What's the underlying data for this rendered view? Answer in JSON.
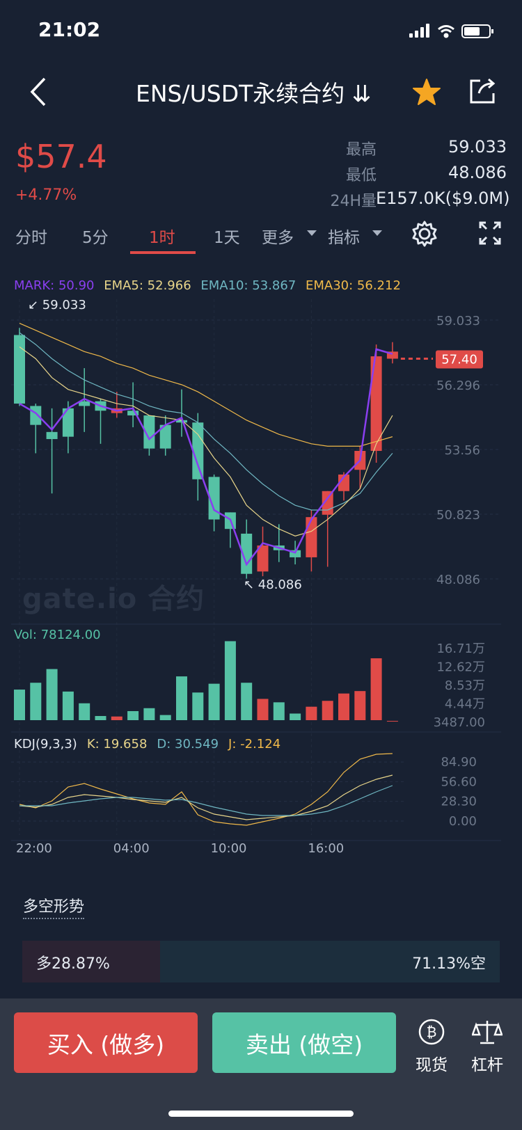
{
  "status": {
    "time": "21:02"
  },
  "header": {
    "title": "ENS/USDT永续合约 ⇊"
  },
  "ticker": {
    "price": "$57.4",
    "change": "+4.77%",
    "high_label": "最高",
    "high_value": "59.033",
    "low_label": "最低",
    "low_value": "48.086",
    "vol_label": "24H量",
    "vol_value": "E157.0K($9.0M)"
  },
  "tabs": [
    "分时",
    "5分",
    "1时",
    "1天",
    "更多",
    "指标"
  ],
  "active_tab": "1时",
  "legend": {
    "mark": "MARK: 50.90",
    "ema5": "EMA5: 52.966",
    "ema10": "EMA10: 53.867",
    "ema30": "EMA30: 56.212"
  },
  "colors": {
    "up": "#56c2a5",
    "down": "#e04b48",
    "mark": "#8a3ff0",
    "ema5": "#e8d58a",
    "ema10": "#6fb7c2",
    "ema30": "#f0b94a",
    "star": "#f5a623"
  },
  "chart_data": [
    {
      "type": "candlestick",
      "title": "",
      "y_ticks": [
        "59.033",
        "56.296",
        "53.56",
        "50.823",
        "48.086"
      ],
      "ylim": [
        48.086,
        59.033
      ],
      "x_ticks": [
        "22:00",
        "04:00",
        "10:00",
        "16:00"
      ],
      "max_label": "59.033",
      "min_label": "48.086",
      "last_price_label": "57.40",
      "candles": [
        {
          "o": 55.5,
          "h": 58.7,
          "l": 55.4,
          "c": 58.4
        },
        {
          "o": 54.6,
          "h": 55.5,
          "l": 53.4,
          "c": 55.4
        },
        {
          "o": 54.0,
          "h": 55.3,
          "l": 51.7,
          "c": 54.3
        },
        {
          "o": 54.1,
          "h": 55.6,
          "l": 53.4,
          "c": 55.3
        },
        {
          "o": 55.4,
          "h": 57.0,
          "l": 54.3,
          "c": 55.6
        },
        {
          "o": 55.2,
          "h": 55.7,
          "l": 53.8,
          "c": 55.6
        },
        {
          "o": 55.3,
          "h": 56.0,
          "l": 54.9,
          "c": 55.1
        },
        {
          "o": 55.0,
          "h": 56.4,
          "l": 54.5,
          "c": 55.2
        },
        {
          "o": 53.6,
          "h": 55.0,
          "l": 53.3,
          "c": 55.0
        },
        {
          "o": 53.6,
          "h": 55.0,
          "l": 53.3,
          "c": 54.6
        },
        {
          "o": 54.7,
          "h": 56.1,
          "l": 54.1,
          "c": 54.8
        },
        {
          "o": 52.3,
          "h": 55.1,
          "l": 51.4,
          "c": 54.7
        },
        {
          "o": 50.6,
          "h": 52.5,
          "l": 50.1,
          "c": 52.4
        },
        {
          "o": 50.2,
          "h": 50.9,
          "l": 49.4,
          "c": 50.9
        },
        {
          "o": 48.3,
          "h": 50.6,
          "l": 48.1,
          "c": 50.0
        },
        {
          "o": 49.5,
          "h": 50.3,
          "l": 48.2,
          "c": 48.4
        },
        {
          "o": 49.3,
          "h": 50.4,
          "l": 48.8,
          "c": 49.5
        },
        {
          "o": 49.0,
          "h": 49.7,
          "l": 48.7,
          "c": 49.3
        },
        {
          "o": 50.7,
          "h": 51.0,
          "l": 48.4,
          "c": 49.0
        },
        {
          "o": 51.8,
          "h": 51.8,
          "l": 48.6,
          "c": 50.8
        },
        {
          "o": 52.5,
          "h": 52.6,
          "l": 51.4,
          "c": 51.8
        },
        {
          "o": 53.5,
          "h": 53.7,
          "l": 51.9,
          "c": 52.7
        },
        {
          "o": 57.5,
          "h": 58.0,
          "l": 53.0,
          "c": 53.5
        },
        {
          "o": 57.7,
          "h": 58.1,
          "l": 57.2,
          "c": 57.4
        }
      ],
      "mark_line": [
        55.5,
        55.1,
        54.4,
        55.3,
        55.7,
        55.4,
        55.2,
        55.3,
        54.0,
        54.6,
        54.9,
        52.9,
        51.0,
        50.6,
        48.7,
        49.6,
        49.4,
        49.2,
        50.6,
        51.5,
        52.4,
        53.1,
        57.8,
        57.6
      ],
      "ema5": [
        57.9,
        57.4,
        56.6,
        56.1,
        55.9,
        55.7,
        55.5,
        55.4,
        55.0,
        54.9,
        54.8,
        54.2,
        53.2,
        52.4,
        51.2,
        50.6,
        50.2,
        49.9,
        50.1,
        50.6,
        51.2,
        51.9,
        53.8,
        55.0
      ],
      "ema10": [
        58.5,
        58.0,
        57.4,
        56.9,
        56.5,
        56.2,
        55.9,
        55.7,
        55.4,
        55.2,
        55.1,
        54.7,
        54.0,
        53.4,
        52.7,
        52.1,
        51.6,
        51.2,
        51.0,
        51.0,
        51.3,
        51.7,
        52.6,
        53.4
      ],
      "ema30": [
        58.9,
        58.6,
        58.3,
        58.0,
        57.7,
        57.5,
        57.2,
        57.0,
        56.7,
        56.5,
        56.3,
        56.0,
        55.6,
        55.2,
        54.8,
        54.5,
        54.2,
        54.0,
        53.8,
        53.7,
        53.7,
        53.7,
        53.9,
        54.1
      ]
    },
    {
      "type": "bar",
      "title": "Vol: 78124.00",
      "y_ticks": [
        "16.71万",
        "12.62万",
        "8.53万",
        "4.44万",
        "3487.00"
      ],
      "ylim": [
        3487,
        167100
      ],
      "values": [
        66000,
        80000,
        108000,
        62000,
        38000,
        12000,
        11000,
        22000,
        28000,
        14000,
        93000,
        60000,
        78000,
        165000,
        80000,
        47000,
        40000,
        17000,
        31000,
        43000,
        58000,
        63000,
        130000,
        2000
      ]
    },
    {
      "type": "line",
      "title": "KDJ(9,3,3)",
      "k_label": "K: 19.658",
      "d_label": "D: 30.549",
      "j_label": "J: -2.124",
      "y_ticks": [
        "84.90",
        "56.60",
        "28.30",
        "0.00"
      ],
      "ylim": [
        0,
        110
      ],
      "k": [
        28,
        26,
        30,
        40,
        44,
        42,
        40,
        37,
        35,
        33,
        40,
        25,
        16,
        12,
        8,
        10,
        12,
        14,
        20,
        28,
        44,
        57,
        66,
        72
      ],
      "d": [
        28,
        28,
        28,
        32,
        35,
        38,
        40,
        40,
        38,
        36,
        37,
        32,
        26,
        21,
        16,
        14,
        14,
        14,
        16,
        20,
        28,
        38,
        48,
        57
      ],
      "j": [
        30,
        25,
        35,
        55,
        60,
        52,
        45,
        38,
        32,
        30,
        48,
        15,
        5,
        2,
        0,
        5,
        10,
        16,
        30,
        48,
        76,
        95,
        102,
        103
      ]
    }
  ],
  "longshort": {
    "title": "多空形势",
    "long": "多28.87%",
    "short": "71.13%空",
    "long_ratio": 0.2887
  },
  "buttons": {
    "buy": "买入 (做多)",
    "sell": "卖出 (做空)",
    "spot": "现货",
    "leverage": "杠杆"
  },
  "watermark": "gate.io 合约"
}
